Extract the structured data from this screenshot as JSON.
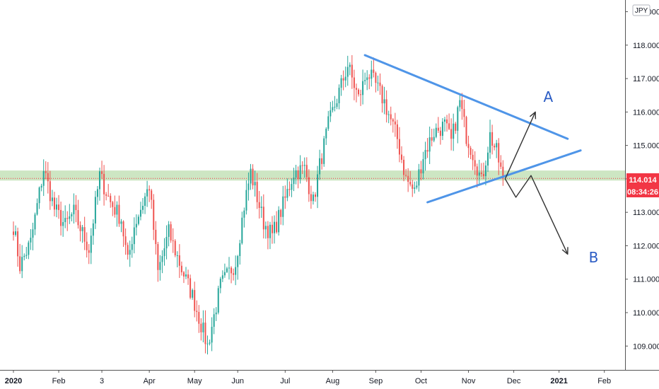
{
  "chart_data": {
    "type": "candlestick",
    "currency": "JPY",
    "price_axis": {
      "ylim": [
        108.35,
        119.35
      ],
      "ticks": [
        "109.000",
        "110.000",
        "111.000",
        "112.000",
        "113.000",
        "114.000",
        "115.000",
        "116.000",
        "117.000",
        "118.000",
        "119.000"
      ]
    },
    "time_axis": {
      "ticks": [
        {
          "label": "2020",
          "bold": true,
          "bar": 0
        },
        {
          "label": "Feb",
          "bold": false,
          "bar": 21
        },
        {
          "label": "3",
          "bold": false,
          "bar": 41
        },
        {
          "label": "Apr",
          "bold": false,
          "bar": 63
        },
        {
          "label": "May",
          "bold": false,
          "bar": 84
        },
        {
          "label": "Jun",
          "bold": false,
          "bar": 104
        },
        {
          "label": "Jul",
          "bold": false,
          "bar": 126
        },
        {
          "label": "Aug",
          "bold": false,
          "bar": 148
        },
        {
          "label": "Sep",
          "bold": false,
          "bar": 168
        },
        {
          "label": "Oct",
          "bold": false,
          "bar": 189
        },
        {
          "label": "Nov",
          "bold": false,
          "bar": 211
        },
        {
          "label": "Dec",
          "bold": false,
          "bar": 232
        },
        {
          "label": "2021",
          "bold": true,
          "bar": 253
        },
        {
          "label": "Feb",
          "bold": false,
          "bar": 274
        }
      ]
    },
    "last_price": {
      "value": "114.014",
      "countdown": "08:34:26",
      "price": 114.014
    },
    "support_zone": {
      "y_low": 113.95,
      "y_high": 114.25
    },
    "anchors": [
      {
        "bar": 0,
        "close": 112.6
      },
      {
        "bar": 3,
        "close": 111.4
      },
      {
        "bar": 8,
        "close": 112.1
      },
      {
        "bar": 14,
        "close": 114.3
      },
      {
        "bar": 19,
        "close": 113.1
      },
      {
        "bar": 24,
        "close": 112.6
      },
      {
        "bar": 28,
        "close": 113.0
      },
      {
        "bar": 35,
        "close": 111.9
      },
      {
        "bar": 40,
        "close": 114.1
      },
      {
        "bar": 45,
        "close": 113.3
      },
      {
        "bar": 50,
        "close": 112.8
      },
      {
        "bar": 53,
        "close": 111.5
      },
      {
        "bar": 56,
        "close": 112.6
      },
      {
        "bar": 63,
        "close": 113.8
      },
      {
        "bar": 67,
        "close": 111.2
      },
      {
        "bar": 72,
        "close": 112.4
      },
      {
        "bar": 78,
        "close": 111.3
      },
      {
        "bar": 83,
        "close": 110.5
      },
      {
        "bar": 90,
        "close": 109.0
      },
      {
        "bar": 96,
        "close": 110.8
      },
      {
        "bar": 103,
        "close": 111.5
      },
      {
        "bar": 107,
        "close": 113.2
      },
      {
        "bar": 110,
        "close": 114.2
      },
      {
        "bar": 116,
        "close": 112.7
      },
      {
        "bar": 120,
        "close": 112.3
      },
      {
        "bar": 126,
        "close": 113.4
      },
      {
        "bar": 130,
        "close": 114.2
      },
      {
        "bar": 135,
        "close": 114.3
      },
      {
        "bar": 139,
        "close": 113.3
      },
      {
        "bar": 142,
        "close": 114.4
      },
      {
        "bar": 146,
        "close": 115.6
      },
      {
        "bar": 150,
        "close": 116.4
      },
      {
        "bar": 155,
        "close": 117.4
      },
      {
        "bar": 160,
        "close": 116.4
      },
      {
        "bar": 164,
        "close": 117.2
      },
      {
        "bar": 168,
        "close": 116.8
      },
      {
        "bar": 172,
        "close": 116.3
      },
      {
        "bar": 178,
        "close": 115.2
      },
      {
        "bar": 182,
        "close": 114.0
      },
      {
        "bar": 186,
        "close": 113.6
      },
      {
        "bar": 190,
        "close": 114.7
      },
      {
        "bar": 195,
        "close": 115.4
      },
      {
        "bar": 200,
        "close": 115.6
      },
      {
        "bar": 203,
        "close": 115.1
      },
      {
        "bar": 207,
        "close": 116.3
      },
      {
        "bar": 210,
        "close": 115.3
      },
      {
        "bar": 214,
        "close": 114.6
      },
      {
        "bar": 217,
        "close": 113.9
      },
      {
        "bar": 221,
        "close": 115.3
      },
      {
        "bar": 224,
        "close": 114.8
      },
      {
        "bar": 227,
        "close": 114.0
      }
    ],
    "annotations": {
      "labels": [
        {
          "text": "A",
          "bar": 248,
          "price": 116.3
        },
        {
          "text": "B",
          "bar": 269,
          "price": 111.5
        }
      ],
      "triangle_upper": [
        {
          "bar": 163,
          "price": 117.7
        },
        {
          "bar": 257,
          "price": 115.2
        }
      ],
      "triangle_lower": [
        {
          "bar": 192,
          "price": 113.3
        },
        {
          "bar": 263,
          "price": 114.85
        }
      ],
      "path_a": [
        {
          "bar": 228,
          "price": 114.0
        },
        {
          "bar": 242,
          "price": 116.0
        }
      ],
      "path_b": [
        {
          "bar": 228,
          "price": 114.0
        },
        {
          "bar": 233,
          "price": 113.45
        },
        {
          "bar": 240,
          "price": 114.1
        },
        {
          "bar": 257,
          "price": 111.75
        }
      ]
    },
    "colors": {
      "up": "#26a69a",
      "down": "#ef5350",
      "pattern": "#4f95e8",
      "zone": "#cde6c3",
      "arrow": "#333333",
      "label": "#2b5cc4",
      "price_tag": "#f23645",
      "last_line": "#f23645",
      "axis_text": "#131722",
      "axis_line": "#555555"
    }
  }
}
